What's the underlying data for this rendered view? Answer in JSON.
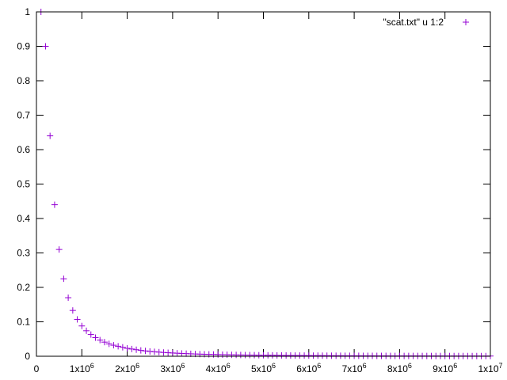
{
  "chart_data": {
    "type": "scatter",
    "title": "",
    "xlabel": "",
    "ylabel": "",
    "xlim": [
      0,
      10000000
    ],
    "ylim": [
      0,
      1
    ],
    "grid": false,
    "legend_position": "top-right",
    "x_tick_labels": [
      {
        "value": 0,
        "mantissa": "0",
        "exponent": ""
      },
      {
        "value": 1000000,
        "mantissa": "1x10",
        "exponent": "6"
      },
      {
        "value": 2000000,
        "mantissa": "2x10",
        "exponent": "6"
      },
      {
        "value": 3000000,
        "mantissa": "3x10",
        "exponent": "6"
      },
      {
        "value": 4000000,
        "mantissa": "4x10",
        "exponent": "6"
      },
      {
        "value": 5000000,
        "mantissa": "5x10",
        "exponent": "6"
      },
      {
        "value": 6000000,
        "mantissa": "6x10",
        "exponent": "6"
      },
      {
        "value": 7000000,
        "mantissa": "7x10",
        "exponent": "6"
      },
      {
        "value": 8000000,
        "mantissa": "8x10",
        "exponent": "6"
      },
      {
        "value": 9000000,
        "mantissa": "9x10",
        "exponent": "6"
      },
      {
        "value": 10000000,
        "mantissa": "1x10",
        "exponent": "7"
      }
    ],
    "y_tick_labels": [
      {
        "value": 0,
        "label": "0"
      },
      {
        "value": 0.1,
        "label": "0.1"
      },
      {
        "value": 0.2,
        "label": "0.2"
      },
      {
        "value": 0.3,
        "label": "0.3"
      },
      {
        "value": 0.4,
        "label": "0.4"
      },
      {
        "value": 0.5,
        "label": "0.5"
      },
      {
        "value": 0.6,
        "label": "0.6"
      },
      {
        "value": 0.7,
        "label": "0.7"
      },
      {
        "value": 0.8,
        "label": "0.8"
      },
      {
        "value": 0.9,
        "label": "0.9"
      },
      {
        "value": 1,
        "label": "1"
      }
    ],
    "series": [
      {
        "name": "\"scat.txt\" u 1:2",
        "color": "#9400d3",
        "marker": "plus",
        "x": [
          100000,
          200000,
          300000,
          400000,
          500000,
          600000,
          700000,
          800000,
          900000,
          1000000,
          1100000,
          1200000,
          1300000,
          1400000,
          1500000,
          1600000,
          1700000,
          1800000,
          1900000,
          2000000,
          2100000,
          2200000,
          2300000,
          2400000,
          2500000,
          2600000,
          2700000,
          2800000,
          2900000,
          3000000,
          3100000,
          3200000,
          3300000,
          3400000,
          3500000,
          3600000,
          3700000,
          3800000,
          3900000,
          4000000,
          4100000,
          4200000,
          4300000,
          4400000,
          4500000,
          4600000,
          4700000,
          4800000,
          4900000,
          5000000,
          5100000,
          5200000,
          5300000,
          5400000,
          5500000,
          5600000,
          5700000,
          5800000,
          5900000,
          6000000,
          6100000,
          6200000,
          6300000,
          6400000,
          6500000,
          6600000,
          6700000,
          6800000,
          6900000,
          7000000,
          7100000,
          7200000,
          7300000,
          7400000,
          7500000,
          7600000,
          7700000,
          7800000,
          7900000,
          8000000,
          8100000,
          8200000,
          8300000,
          8400000,
          8500000,
          8600000,
          8700000,
          8800000,
          8900000,
          9000000,
          9100000,
          9200000,
          9300000,
          9400000,
          9500000,
          9600000,
          9700000,
          9800000,
          9900000,
          10000000
        ],
        "y": [
          1.0,
          0.9,
          0.64,
          0.44,
          0.31,
          0.225,
          0.17,
          0.133,
          0.107,
          0.088,
          0.074,
          0.063,
          0.054,
          0.047,
          0.041,
          0.036,
          0.032,
          0.029,
          0.026,
          0.023,
          0.021,
          0.019,
          0.017,
          0.0155,
          0.014,
          0.013,
          0.012,
          0.011,
          0.0102,
          0.0095,
          0.0088,
          0.0082,
          0.0076,
          0.0071,
          0.0066,
          0.0062,
          0.0058,
          0.0055,
          0.0052,
          0.0049,
          0.0046,
          0.0044,
          0.0041,
          0.0039,
          0.0037,
          0.0035,
          0.0034,
          0.0032,
          0.003,
          0.0029,
          0.0028,
          0.0027,
          0.0025,
          0.0024,
          0.0023,
          0.0022,
          0.0021,
          0.0021,
          0.002,
          0.0019,
          0.0018,
          0.0018,
          0.0017,
          0.0016,
          0.0016,
          0.0015,
          0.0015,
          0.0014,
          0.0014,
          0.0013,
          0.0013,
          0.0012,
          0.0012,
          0.0012,
          0.0011,
          0.0011,
          0.0011,
          0.001,
          0.001,
          0.001,
          0.0009,
          0.0009,
          0.0009,
          0.0009,
          0.0008,
          0.0008,
          0.0008,
          0.0008,
          0.0008,
          0.0007,
          0.0007,
          0.0007,
          0.0007,
          0.0007,
          0.0006,
          0.0006,
          0.0006,
          0.0006,
          0.0006,
          0.0006
        ]
      }
    ]
  }
}
